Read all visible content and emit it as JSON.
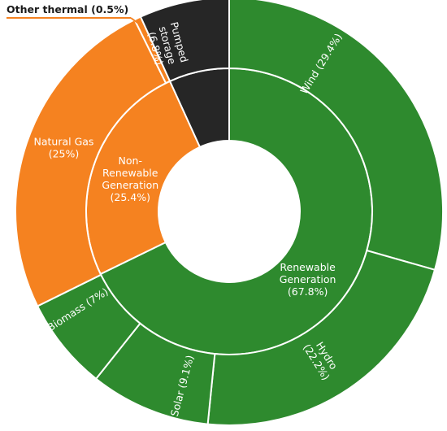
{
  "chart_data": {
    "type": "sunburst",
    "title": "",
    "colors": {
      "renewable": "#2e8a2e",
      "non_renewable": "#f58220",
      "pumped_storage": "#262626",
      "stroke": "#ffffff"
    },
    "inner": [
      {
        "name": "Renewable Generation",
        "label_lines": [
          "Renewable",
          "Generation",
          "(67.8%)"
        ],
        "value": 67.8,
        "color": "#2e8a2e"
      },
      {
        "name": "Non-Renewable Generation",
        "label_lines": [
          "Non-",
          "Renewable",
          "Generation",
          "(25.4%)"
        ],
        "value": 25.4,
        "color": "#f58220"
      },
      {
        "name": "Pumped storage",
        "label_lines": [
          "Pumped",
          "storage",
          "(6.8%)"
        ],
        "value": 6.8,
        "color": "#262626"
      }
    ],
    "outer": [
      {
        "name": "Wind",
        "label": "Wind (29.4%)",
        "value": 29.4,
        "parent": "Renewable Generation",
        "color": "#2e8a2e"
      },
      {
        "name": "Hydro",
        "label_lines": [
          "Hydro",
          "(22.2%)"
        ],
        "value": 22.2,
        "parent": "Renewable Generation",
        "color": "#2e8a2e"
      },
      {
        "name": "Solar",
        "label": "Solar (9.1%)",
        "value": 9.1,
        "parent": "Renewable Generation",
        "color": "#2e8a2e"
      },
      {
        "name": "Biomass",
        "label": "Biomass (7%)",
        "value": 7.0,
        "parent": "Renewable Generation",
        "color": "#2e8a2e"
      },
      {
        "name": "Natural Gas",
        "label_lines": [
          "Natural Gas",
          "(25%)"
        ],
        "value": 25.0,
        "parent": "Non-Renewable Generation",
        "color": "#f58220"
      },
      {
        "name": "Other thermal",
        "label": "Other thermal (0.5%)",
        "value": 0.5,
        "parent": "Non-Renewable Generation",
        "color": "#f58220"
      },
      {
        "name": "Pumped storage",
        "value": 6.8,
        "parent": "Pumped storage",
        "color": "#262626"
      }
    ]
  }
}
